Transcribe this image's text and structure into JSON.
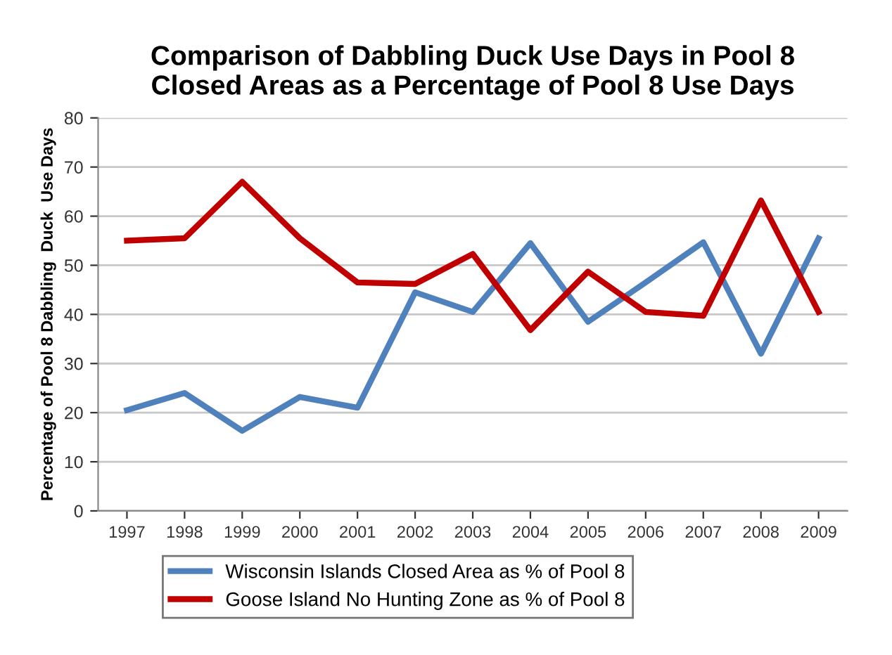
{
  "chart_data": {
    "type": "line",
    "title": "Comparison of Dabbling Duck Use Days in Pool 8\nClosed Areas as a Percentage of Pool 8 Use Days",
    "ylabel": "Percentage of Pool 8 Dabbling  Duck  Use Days",
    "categories": [
      "1997",
      "1998",
      "1999",
      "2000",
      "2001",
      "2002",
      "2003",
      "2004",
      "2005",
      "2006",
      "2007",
      "2008",
      "2009"
    ],
    "series": [
      {
        "name": "Wisconsin Islands Closed Area as % of Pool 8",
        "color": "#4f81bd",
        "values": [
          20.5,
          24,
          16.3,
          23.2,
          21,
          44.5,
          40.5,
          54.5,
          38.5,
          46.5,
          54.7,
          32,
          55.5
        ]
      },
      {
        "name": "Goose Island No Hunting Zone as % of Pool 8",
        "color": "#c00000",
        "values": [
          55,
          55.5,
          67,
          55.5,
          46.5,
          46.2,
          52.3,
          36.8,
          48.7,
          40.5,
          39.7,
          63.2,
          40.5
        ]
      }
    ],
    "ylim": [
      0,
      80
    ],
    "yticks": [
      0,
      10,
      20,
      30,
      40,
      50,
      60,
      70,
      80
    ],
    "grid": "y",
    "legend": "bottom",
    "marker": "none",
    "line_style": "solid"
  }
}
